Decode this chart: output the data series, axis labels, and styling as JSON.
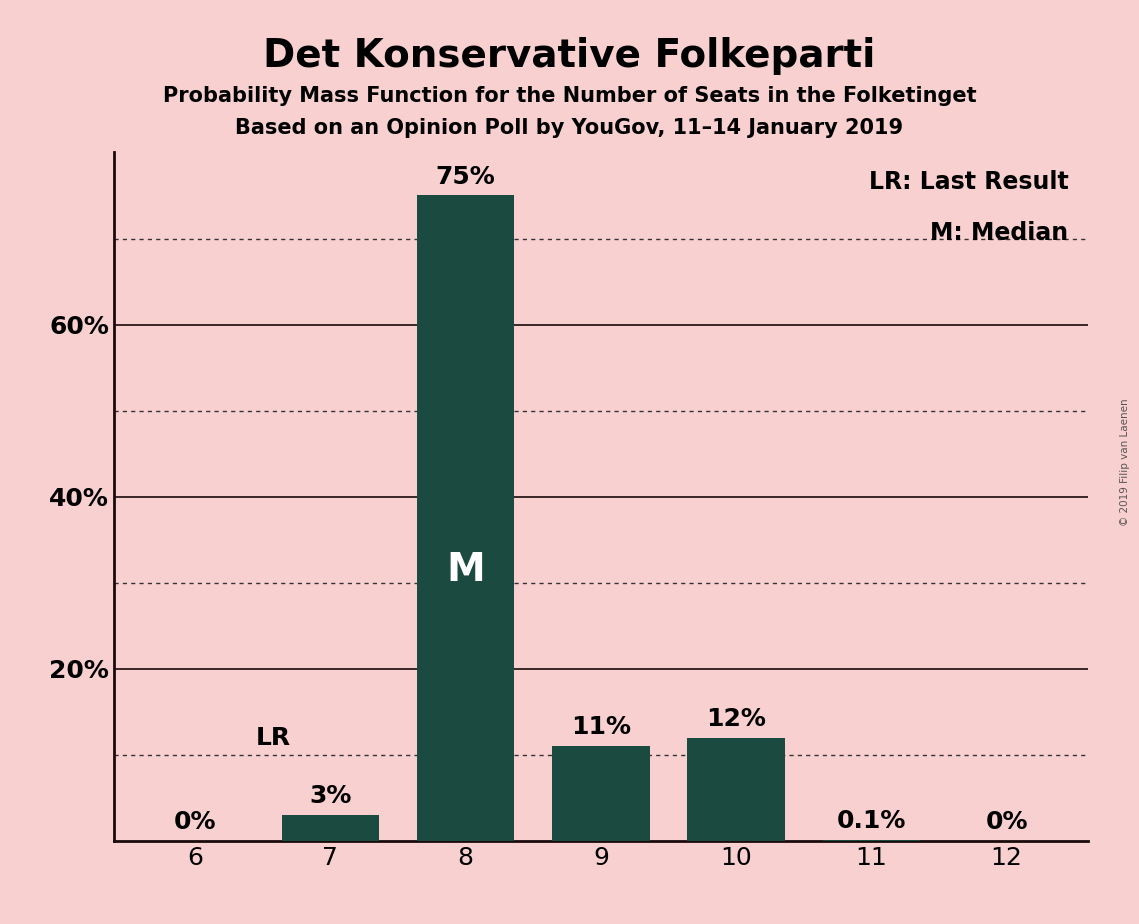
{
  "title": "Det Konservative Folkeparti",
  "subtitle1": "Probability Mass Function for the Number of Seats in the Folketinget",
  "subtitle2": "Based on an Opinion Poll by YouGov, 11–14 January 2019",
  "copyright": "© 2019 Filip van Laenen",
  "categories": [
    6,
    7,
    8,
    9,
    10,
    11,
    12
  ],
  "values": [
    0.0,
    3.0,
    75.0,
    11.0,
    12.0,
    0.1,
    0.0
  ],
  "bar_color": "#1a4a40",
  "background_color": "#f9d0d0",
  "plot_bg_color": "#f9d0d0",
  "ylim": [
    0,
    80
  ],
  "bar_labels": [
    "0%",
    "3%",
    "75%",
    "11%",
    "12%",
    "0.1%",
    "0%"
  ],
  "median_bar": 8,
  "median_label": "M",
  "lr_bar": 6,
  "lr_label": "LR",
  "lr_line_value": 10,
  "legend_text1": "LR: Last Result",
  "legend_text2": "M: Median",
  "title_fontsize": 28,
  "subtitle_fontsize": 15,
  "tick_fontsize": 18,
  "bar_label_fontsize": 18,
  "legend_fontsize": 17,
  "solid_grid_values": [
    20,
    40,
    60
  ],
  "dotted_grid_values": [
    10,
    30,
    50,
    70
  ],
  "ytick_labels": [
    "20%",
    "40%",
    "60%"
  ],
  "ytick_values": [
    20,
    40,
    60
  ]
}
